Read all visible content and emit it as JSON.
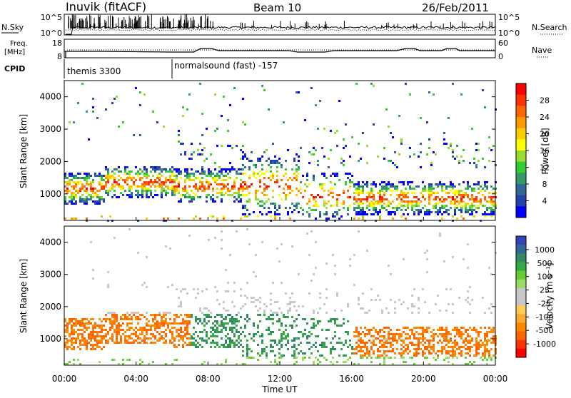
{
  "header": {
    "station": "Inuvik (fitACF)",
    "beam": "Beam 10",
    "date": "26/Feb/2011"
  },
  "panels": {
    "nsky": {
      "left_label": "N.Sky",
      "right_label": "N.Search",
      "ticks": [
        "10^5",
        "10^0"
      ]
    },
    "freq": {
      "left_label_line1": "Freq.",
      "left_label_line2": "[MHz]",
      "right_label": "Nave",
      "left_ticks": [
        "18",
        "8"
      ],
      "right_ticks": [
        "60",
        "0"
      ]
    },
    "cpid": {
      "label": "CPID",
      "programs": [
        {
          "name": "themis 3300",
          "start_hour": 0
        },
        {
          "name": "normalsound (fast) -157",
          "start_hour": 6
        }
      ]
    }
  },
  "chart_data": [
    {
      "type": "heatmap",
      "name": "power",
      "ylabel": "Slant Range [km]",
      "yticks": [
        1000,
        2000,
        3000,
        4000
      ],
      "ylim": [
        180,
        4500
      ],
      "colorbar": {
        "label": "Power [dB]",
        "ticks": [
          "28",
          "24",
          "20",
          "16",
          "12",
          "8",
          "4"
        ],
        "colors": [
          "#ff0000",
          "#ff3300",
          "#ff6600",
          "#ff9900",
          "#ffcc00",
          "#ffff00",
          "#99dd33",
          "#33cc33",
          "#339966",
          "#336699",
          "#2244aa",
          "#0000ff"
        ]
      }
    },
    {
      "type": "heatmap",
      "name": "velocity",
      "ylabel": "Slant Range [km]",
      "yticks": [
        1000,
        2000,
        3000,
        4000
      ],
      "ylim": [
        180,
        4500
      ],
      "colorbar": {
        "label": "Velocity [m s⁻¹]",
        "ticks": [
          "1000",
          "500",
          "100",
          "25",
          "-25",
          "-100",
          "-500",
          "-1000"
        ],
        "colors": [
          "#3344bb",
          "#336699",
          "#338866",
          "#33aa44",
          "#66cc33",
          "#99dd66",
          "#c8c8c8",
          "#c8c8c8",
          "#ffcc55",
          "#ffaa33",
          "#ff8800",
          "#ff6600",
          "#ff3300",
          "#ff0000"
        ]
      }
    }
  ],
  "xaxis": {
    "label": "Time UT",
    "ticks": [
      "00:00",
      "04:00",
      "08:00",
      "12:00",
      "16:00",
      "20:00",
      "00:00"
    ],
    "xlim_hours": [
      0,
      24
    ]
  }
}
